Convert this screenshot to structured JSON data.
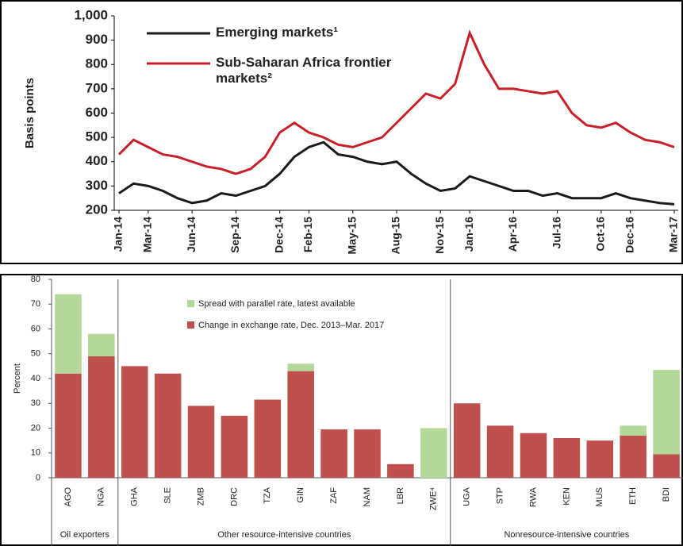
{
  "chart_data": [
    {
      "type": "line",
      "y_label": "Basis points",
      "categories": [
        "Jan-14",
        null,
        "Mar-14",
        null,
        null,
        "Jun-14",
        null,
        null,
        "Sep-14",
        null,
        null,
        "Dec-14",
        null,
        "Feb-15",
        null,
        null,
        "May-15",
        null,
        null,
        "Aug-15",
        null,
        null,
        "Nov-15",
        null,
        "Jan-16",
        null,
        null,
        "Apr-16",
        null,
        null,
        "Jul-16",
        null,
        null,
        "Oct-16",
        null,
        "Dec-16",
        null,
        null,
        "Mar-17"
      ],
      "series": [
        {
          "name": "Emerging markets¹",
          "color": "#1a1a1a",
          "values": [
            270,
            310,
            300,
            280,
            250,
            230,
            240,
            270,
            260,
            280,
            300,
            350,
            420,
            460,
            480,
            430,
            420,
            400,
            390,
            400,
            350,
            310,
            280,
            290,
            340,
            320,
            300,
            280,
            280,
            260,
            270,
            250,
            250,
            250,
            270,
            250,
            240,
            230,
            225
          ]
        },
        {
          "name": "Sub-Saharan Africa frontier markets²",
          "color": "#c8202a",
          "values": [
            430,
            490,
            460,
            430,
            420,
            400,
            380,
            370,
            350,
            370,
            420,
            520,
            560,
            520,
            500,
            470,
            460,
            480,
            500,
            560,
            620,
            680,
            660,
            720,
            930,
            800,
            700,
            700,
            690,
            680,
            690,
            600,
            550,
            540,
            560,
            520,
            490,
            480,
            460
          ]
        }
      ],
      "ylim": [
        200,
        1000
      ],
      "yticks": [
        200,
        300,
        400,
        500,
        600,
        700,
        800,
        900,
        {
          "value": 1000,
          "label": "1,000"
        }
      ]
    },
    {
      "type": "stacked_bar",
      "y_label": "Percent",
      "categories": [
        "AGO",
        "NGA",
        "GHA",
        "SLE",
        "ZMB",
        "DRC",
        "TZA",
        "GIN",
        "ZAF",
        "NAM",
        "LBR",
        "ZWE⁴",
        "UGA",
        "STP",
        "RWA",
        "KEN",
        "MUS",
        "ETH",
        "BDI"
      ],
      "group_labels": [
        "Oil exporters",
        "Other resource-intensive countries",
        "Nonresource-intensive countries"
      ],
      "series": [
        {
          "name": "Change in exchange rate, Dec. 2013–Mar. 2017",
          "color": "#c0504d",
          "values": [
            42,
            49,
            45,
            42,
            29,
            25,
            31.5,
            43,
            19.5,
            19.5,
            5.5,
            null,
            30,
            21,
            18,
            16,
            15,
            17,
            9.5
          ]
        },
        {
          "name": "Spread with parallel rate, latest available",
          "color": "#b3d89a",
          "values": [
            32,
            9,
            null,
            null,
            null,
            null,
            null,
            3,
            null,
            null,
            null,
            20,
            null,
            null,
            null,
            null,
            null,
            4,
            34
          ]
        }
      ],
      "ylim": [
        0,
        80
      ],
      "yticks": [
        0,
        10,
        20,
        30,
        40,
        50,
        60,
        70,
        80
      ]
    }
  ]
}
